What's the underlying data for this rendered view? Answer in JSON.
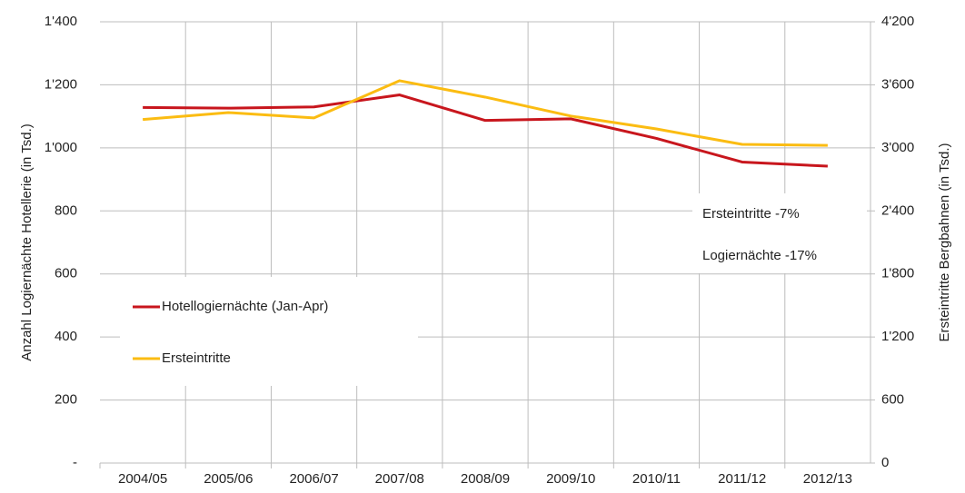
{
  "chart_data": {
    "type": "line",
    "categories": [
      "2004/05",
      "2005/06",
      "2006/07",
      "2007/08",
      "2008/09",
      "2009/10",
      "2010/11",
      "2011/12",
      "2012/13"
    ],
    "series": [
      {
        "name": "Hotellogiernächte (Jan-Apr)",
        "color": "#c8161d",
        "values": [
          1128,
          1126,
          1130,
          1168,
          1087,
          1092,
          1030,
          955,
          942
        ]
      },
      {
        "name": "Ersteintritte",
        "color": "#fbbc12",
        "axis": "y2",
        "values": [
          3270,
          3336,
          3285,
          3639,
          3483,
          3303,
          3180,
          3033,
          3024
        ]
      }
    ],
    "ylabel": "Anzahl Logiernächte Hotellerie (in Tsd.)",
    "y2label": "Ersteintritte Bergbahnen (in Tsd.)",
    "ylim": [
      0,
      1400
    ],
    "yticks": [
      {
        "value": 0,
        "label": "-"
      },
      200,
      400,
      600,
      800,
      {
        "value": 1000,
        "label": "1'000"
      },
      {
        "value": 1200,
        "label": "1'200"
      },
      {
        "value": 1400,
        "label": "1'400"
      }
    ],
    "y2lim": [
      0,
      4200
    ],
    "y2ticks": [
      0,
      600,
      {
        "value": 1200,
        "label": "1'200"
      },
      {
        "value": 1800,
        "label": "1'800"
      },
      {
        "value": 2400,
        "label": "2'400"
      },
      {
        "value": 3000,
        "label": "3'000"
      },
      {
        "value": 3600,
        "label": "3'600"
      },
      {
        "value": 4200,
        "label": "4'200"
      }
    ],
    "annotations": [
      "Ersteintritte   -7%",
      "Logiernächte -17%"
    ],
    "grid": true,
    "legend": "center left"
  }
}
